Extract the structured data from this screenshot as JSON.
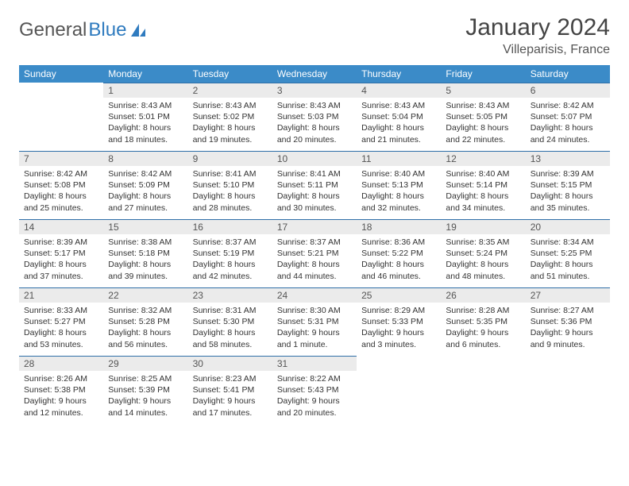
{
  "logo": {
    "text_a": "General",
    "text_b": "Blue",
    "sail_color": "#2f7bbf"
  },
  "header": {
    "month_title": "January 2024",
    "location": "Villeparisis, France"
  },
  "theme": {
    "header_bg": "#3b8bc8",
    "header_fg": "#ffffff",
    "daynum_bg": "#ebebeb",
    "daynum_border": "#2f6fa8",
    "body_fg": "#333333",
    "title_fontsize": 30,
    "location_fontsize": 16,
    "weekday_fontsize": 12,
    "cell_fontsize": 10.5
  },
  "weekdays": [
    "Sunday",
    "Monday",
    "Tuesday",
    "Wednesday",
    "Thursday",
    "Friday",
    "Saturday"
  ],
  "weeks": [
    [
      null,
      {
        "n": "1",
        "sunrise": "8:43 AM",
        "sunset": "5:01 PM",
        "dl1": "Daylight: 8 hours",
        "dl2": "and 18 minutes."
      },
      {
        "n": "2",
        "sunrise": "8:43 AM",
        "sunset": "5:02 PM",
        "dl1": "Daylight: 8 hours",
        "dl2": "and 19 minutes."
      },
      {
        "n": "3",
        "sunrise": "8:43 AM",
        "sunset": "5:03 PM",
        "dl1": "Daylight: 8 hours",
        "dl2": "and 20 minutes."
      },
      {
        "n": "4",
        "sunrise": "8:43 AM",
        "sunset": "5:04 PM",
        "dl1": "Daylight: 8 hours",
        "dl2": "and 21 minutes."
      },
      {
        "n": "5",
        "sunrise": "8:43 AM",
        "sunset": "5:05 PM",
        "dl1": "Daylight: 8 hours",
        "dl2": "and 22 minutes."
      },
      {
        "n": "6",
        "sunrise": "8:42 AM",
        "sunset": "5:07 PM",
        "dl1": "Daylight: 8 hours",
        "dl2": "and 24 minutes."
      }
    ],
    [
      {
        "n": "7",
        "sunrise": "8:42 AM",
        "sunset": "5:08 PM",
        "dl1": "Daylight: 8 hours",
        "dl2": "and 25 minutes."
      },
      {
        "n": "8",
        "sunrise": "8:42 AM",
        "sunset": "5:09 PM",
        "dl1": "Daylight: 8 hours",
        "dl2": "and 27 minutes."
      },
      {
        "n": "9",
        "sunrise": "8:41 AM",
        "sunset": "5:10 PM",
        "dl1": "Daylight: 8 hours",
        "dl2": "and 28 minutes."
      },
      {
        "n": "10",
        "sunrise": "8:41 AM",
        "sunset": "5:11 PM",
        "dl1": "Daylight: 8 hours",
        "dl2": "and 30 minutes."
      },
      {
        "n": "11",
        "sunrise": "8:40 AM",
        "sunset": "5:13 PM",
        "dl1": "Daylight: 8 hours",
        "dl2": "and 32 minutes."
      },
      {
        "n": "12",
        "sunrise": "8:40 AM",
        "sunset": "5:14 PM",
        "dl1": "Daylight: 8 hours",
        "dl2": "and 34 minutes."
      },
      {
        "n": "13",
        "sunrise": "8:39 AM",
        "sunset": "5:15 PM",
        "dl1": "Daylight: 8 hours",
        "dl2": "and 35 minutes."
      }
    ],
    [
      {
        "n": "14",
        "sunrise": "8:39 AM",
        "sunset": "5:17 PM",
        "dl1": "Daylight: 8 hours",
        "dl2": "and 37 minutes."
      },
      {
        "n": "15",
        "sunrise": "8:38 AM",
        "sunset": "5:18 PM",
        "dl1": "Daylight: 8 hours",
        "dl2": "and 39 minutes."
      },
      {
        "n": "16",
        "sunrise": "8:37 AM",
        "sunset": "5:19 PM",
        "dl1": "Daylight: 8 hours",
        "dl2": "and 42 minutes."
      },
      {
        "n": "17",
        "sunrise": "8:37 AM",
        "sunset": "5:21 PM",
        "dl1": "Daylight: 8 hours",
        "dl2": "and 44 minutes."
      },
      {
        "n": "18",
        "sunrise": "8:36 AM",
        "sunset": "5:22 PM",
        "dl1": "Daylight: 8 hours",
        "dl2": "and 46 minutes."
      },
      {
        "n": "19",
        "sunrise": "8:35 AM",
        "sunset": "5:24 PM",
        "dl1": "Daylight: 8 hours",
        "dl2": "and 48 minutes."
      },
      {
        "n": "20",
        "sunrise": "8:34 AM",
        "sunset": "5:25 PM",
        "dl1": "Daylight: 8 hours",
        "dl2": "and 51 minutes."
      }
    ],
    [
      {
        "n": "21",
        "sunrise": "8:33 AM",
        "sunset": "5:27 PM",
        "dl1": "Daylight: 8 hours",
        "dl2": "and 53 minutes."
      },
      {
        "n": "22",
        "sunrise": "8:32 AM",
        "sunset": "5:28 PM",
        "dl1": "Daylight: 8 hours",
        "dl2": "and 56 minutes."
      },
      {
        "n": "23",
        "sunrise": "8:31 AM",
        "sunset": "5:30 PM",
        "dl1": "Daylight: 8 hours",
        "dl2": "and 58 minutes."
      },
      {
        "n": "24",
        "sunrise": "8:30 AM",
        "sunset": "5:31 PM",
        "dl1": "Daylight: 9 hours",
        "dl2": "and 1 minute."
      },
      {
        "n": "25",
        "sunrise": "8:29 AM",
        "sunset": "5:33 PM",
        "dl1": "Daylight: 9 hours",
        "dl2": "and 3 minutes."
      },
      {
        "n": "26",
        "sunrise": "8:28 AM",
        "sunset": "5:35 PM",
        "dl1": "Daylight: 9 hours",
        "dl2": "and 6 minutes."
      },
      {
        "n": "27",
        "sunrise": "8:27 AM",
        "sunset": "5:36 PM",
        "dl1": "Daylight: 9 hours",
        "dl2": "and 9 minutes."
      }
    ],
    [
      {
        "n": "28",
        "sunrise": "8:26 AM",
        "sunset": "5:38 PM",
        "dl1": "Daylight: 9 hours",
        "dl2": "and 12 minutes."
      },
      {
        "n": "29",
        "sunrise": "8:25 AM",
        "sunset": "5:39 PM",
        "dl1": "Daylight: 9 hours",
        "dl2": "and 14 minutes."
      },
      {
        "n": "30",
        "sunrise": "8:23 AM",
        "sunset": "5:41 PM",
        "dl1": "Daylight: 9 hours",
        "dl2": "and 17 minutes."
      },
      {
        "n": "31",
        "sunrise": "8:22 AM",
        "sunset": "5:43 PM",
        "dl1": "Daylight: 9 hours",
        "dl2": "and 20 minutes."
      },
      null,
      null,
      null
    ]
  ]
}
